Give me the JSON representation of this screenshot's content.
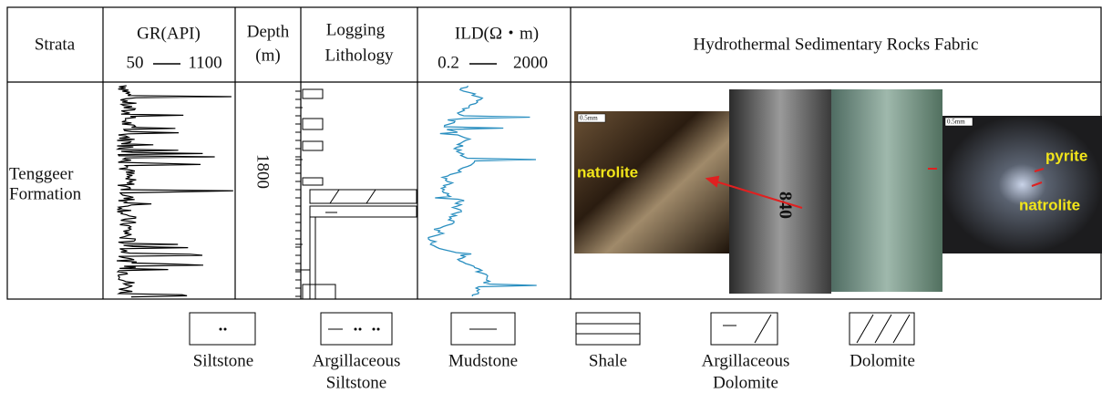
{
  "header": {
    "strata": "Strata",
    "gr_title": "GR(API)",
    "gr_min": "50",
    "gr_max": "1100",
    "depth": [
      "Depth",
      "(m)"
    ],
    "lithology": [
      "Logging",
      "Lithology"
    ],
    "ild_title": "ILD(Ω・m)",
    "ild_min": "0.2",
    "ild_max": "2000",
    "fabric": "Hydrothermal Sedimentary Rocks  Fabric"
  },
  "body": {
    "formation": [
      "Tenggeer",
      "Formation"
    ],
    "depth_mark": "1800",
    "photos": {
      "scale_1": "0.5mm",
      "natrolite_1": "natrolite",
      "core_no": "840",
      "scale_2": "0.5mm",
      "pyrite": "pyrite",
      "natrolite_2": "natrolite"
    }
  },
  "legend": [
    {
      "name": [
        "Siltstone"
      ]
    },
    {
      "name": [
        "Argillaceous",
        "Siltstone"
      ]
    },
    {
      "name": [
        "Mudstone"
      ]
    },
    {
      "name": [
        "Shale"
      ]
    },
    {
      "name": [
        "Argillaceous",
        "Dolomite"
      ]
    },
    {
      "name": [
        "Dolomite"
      ]
    }
  ]
}
